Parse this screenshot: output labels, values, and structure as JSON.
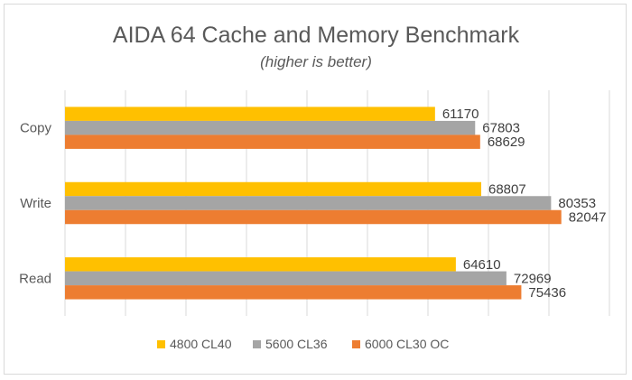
{
  "chart_data": {
    "type": "bar",
    "orientation": "horizontal",
    "title": "AIDA 64 Cache and Memory Benchmark",
    "subtitle": "(higher is better)",
    "categories": [
      "Copy",
      "Write",
      "Read"
    ],
    "series": [
      {
        "name": "4800 CL40",
        "color": "#ffc000",
        "values": [
          61170,
          68807,
          64610
        ]
      },
      {
        "name": "5600 CL36",
        "color": "#a5a5a5",
        "values": [
          67803,
          80353,
          72969
        ]
      },
      {
        "name": "6000 CL30 OC",
        "color": "#ed7d31",
        "values": [
          68629,
          82047,
          75436
        ]
      }
    ],
    "xlim": [
      0,
      90000
    ],
    "grid": true,
    "legend": "bottom",
    "data_labels": true
  }
}
